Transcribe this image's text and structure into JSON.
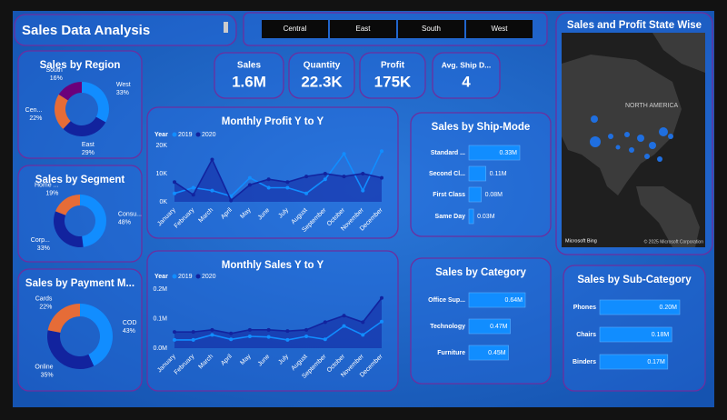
{
  "header": {
    "title": "Sales Data Analysis"
  },
  "slicer": {
    "items": [
      "Central",
      "East",
      "South",
      "West"
    ]
  },
  "kpis": [
    {
      "label": "Sales",
      "value": "1.6M"
    },
    {
      "label": "Quantity",
      "value": "22.3K"
    },
    {
      "label": "Profit",
      "value": "175K"
    },
    {
      "label": "Avg. Ship D...",
      "value": "4"
    }
  ],
  "map": {
    "title": "Sales and Profit State Wise",
    "region_label": "NORTH AMERICA",
    "brand": "Microsoft Bing",
    "copyright": "© 2025 Microsoft Corporation"
  },
  "chart_data": [
    {
      "type": "donut",
      "title": "Sales by Region",
      "categories": [
        "West",
        "East",
        "Cen...",
        "South"
      ],
      "values": [
        33,
        29,
        22,
        16
      ],
      "value_labels": [
        "33%",
        "29%",
        "22%",
        "16%"
      ],
      "colors": [
        "#118dff",
        "#12239e",
        "#e66c37",
        "#6b007b"
      ]
    },
    {
      "type": "donut",
      "title": "Sales by Segment",
      "categories": [
        "Consu...",
        "Corp...",
        "Home ..."
      ],
      "values": [
        48,
        33,
        19
      ],
      "value_labels": [
        "48%",
        "33%",
        "19%"
      ],
      "colors": [
        "#118dff",
        "#12239e",
        "#e66c37"
      ]
    },
    {
      "type": "donut",
      "title": "Sales by Payment M...",
      "categories": [
        "COD",
        "Online",
        "Cards"
      ],
      "values": [
        43,
        35,
        22
      ],
      "value_labels": [
        "43%",
        "35%",
        "22%"
      ],
      "colors": [
        "#118dff",
        "#12239e",
        "#e66c37"
      ]
    },
    {
      "type": "line",
      "title": "Monthly Profit Y to Y",
      "legend_title": "Year",
      "categories": [
        "January",
        "February",
        "March",
        "April",
        "May",
        "June",
        "July",
        "August",
        "September",
        "October",
        "November",
        "December"
      ],
      "series": [
        {
          "name": "2019",
          "color": "#118dff",
          "values": [
            3000,
            5000,
            4000,
            2000,
            8500,
            5000,
            5000,
            3000,
            8000,
            17000,
            4000,
            18000
          ]
        },
        {
          "name": "2020",
          "color": "#12239e",
          "area": true,
          "values": [
            7000,
            2500,
            15000,
            500,
            6000,
            8000,
            7000,
            9000,
            10000,
            9000,
            10000,
            8500
          ]
        }
      ],
      "ylim": [
        0,
        22000
      ],
      "yticks": [
        {
          "value": 0,
          "label": "0K"
        },
        {
          "value": 10000,
          "label": "10K"
        },
        {
          "value": 20000,
          "label": "20K"
        }
      ]
    },
    {
      "type": "line",
      "title": "Monthly Sales Y to Y",
      "legend_title": "Year",
      "categories": [
        "January",
        "February",
        "March",
        "April",
        "May",
        "June",
        "July",
        "August",
        "September",
        "October",
        "November",
        "December"
      ],
      "series": [
        {
          "name": "2019",
          "color": "#118dff",
          "values": [
            28000,
            28000,
            45000,
            30000,
            40000,
            38000,
            28000,
            40000,
            30000,
            75000,
            45000,
            90000
          ]
        },
        {
          "name": "2020",
          "color": "#12239e",
          "area": true,
          "values": [
            55000,
            55000,
            62000,
            50000,
            62000,
            62000,
            58000,
            62000,
            88000,
            110000,
            88000,
            170000
          ]
        }
      ],
      "ylim": [
        0,
        200000
      ],
      "yticks": [
        {
          "value": 0,
          "label": "0.0M"
        },
        {
          "value": 100000,
          "label": "0.1M"
        },
        {
          "value": 200000,
          "label": "0.2M"
        }
      ]
    },
    {
      "type": "hbar",
      "title": "Sales by Ship-Mode",
      "categories": [
        "Standard ...",
        "Second Cl...",
        "First Class",
        "Same Day"
      ],
      "values": [
        0.33,
        0.11,
        0.08,
        0.03
      ],
      "value_labels": [
        "0.33M",
        "0.11M",
        "0.08M",
        "0.03M"
      ],
      "color": "#118dff"
    },
    {
      "type": "hbar",
      "title": "Sales by Category",
      "categories": [
        "Office Sup...",
        "Technology",
        "Furniture"
      ],
      "values": [
        0.64,
        0.47,
        0.45
      ],
      "value_labels": [
        "0.64M",
        "0.47M",
        "0.45M"
      ],
      "color": "#118dff"
    },
    {
      "type": "hbar",
      "title": "Sales by Sub-Category",
      "categories": [
        "Phones",
        "Chairs",
        "Binders"
      ],
      "values": [
        0.2,
        0.18,
        0.17
      ],
      "value_labels": [
        "0.20M",
        "0.18M",
        "0.17M"
      ],
      "color": "#118dff"
    }
  ]
}
